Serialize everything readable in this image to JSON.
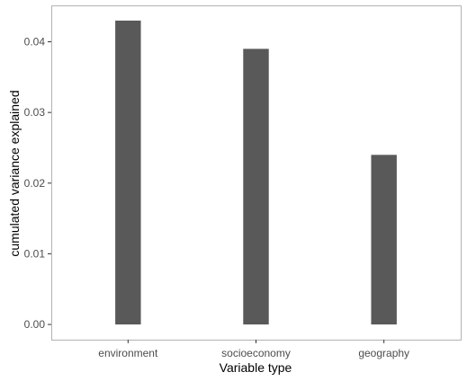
{
  "chart_data": {
    "type": "bar",
    "title": "",
    "xlabel": "Variable type",
    "ylabel": "cumulated variance explained",
    "categories": [
      "environment",
      "socioeconomy",
      "geography"
    ],
    "values": [
      0.043,
      0.039,
      0.024
    ],
    "ylim": [
      -0.00215,
      0.04515
    ],
    "yticks": [
      0.0,
      0.01,
      0.02,
      0.03,
      0.04
    ],
    "ytick_labels": [
      "0.00",
      "0.01",
      "0.02",
      "0.03",
      "0.04"
    ],
    "grid": false,
    "legend": "none",
    "colors": {
      "bar": "#595959",
      "panel_border": "#b3b3b3",
      "tick": "#333333",
      "tick_label": "#4d4d4d",
      "axis_title": "#000000"
    }
  }
}
